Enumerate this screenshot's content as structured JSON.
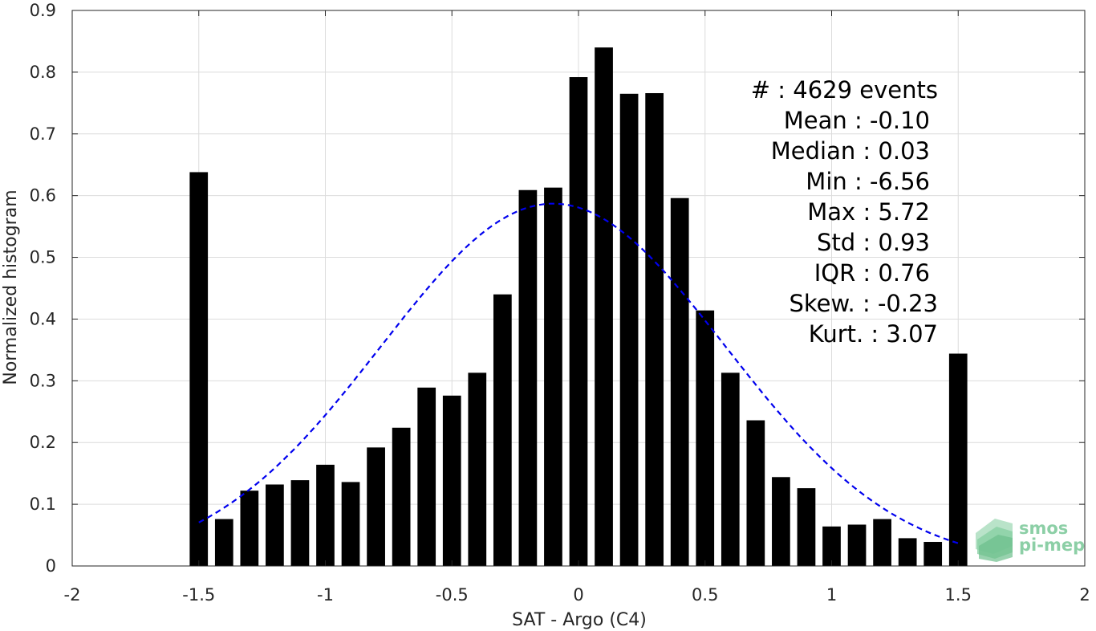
{
  "chart_data": {
    "type": "bar",
    "xlabel": "SAT - Argo (C4)",
    "ylabel": "Normalized histogram",
    "xlim": [
      -2,
      2
    ],
    "ylim": [
      0,
      0.9
    ],
    "x_ticks": [
      "-2",
      "-1.5",
      "-1",
      "-0.5",
      "0",
      "0.5",
      "1",
      "1.5",
      "2"
    ],
    "y_ticks": [
      "0",
      "0.1",
      "0.2",
      "0.3",
      "0.4",
      "0.5",
      "0.6",
      "0.7",
      "0.8",
      "0.9"
    ],
    "grid": true,
    "bar_color": "#000000",
    "bin_width": 0.1,
    "series": [
      {
        "x": [
          -1.5,
          -1.4,
          -1.3,
          -1.2,
          -1.1,
          -1.0,
          -0.9,
          -0.8,
          -0.7,
          -0.6,
          -0.5,
          -0.4,
          -0.3,
          -0.2,
          -0.1,
          0.0,
          0.1,
          0.2,
          0.3,
          0.4,
          0.5,
          0.6,
          0.7,
          0.8,
          0.9,
          1.0,
          1.1,
          1.2,
          1.3,
          1.4,
          1.5
        ],
        "values": [
          0.638,
          0.076,
          0.122,
          0.132,
          0.139,
          0.164,
          0.136,
          0.192,
          0.224,
          0.289,
          0.276,
          0.313,
          0.44,
          0.609,
          0.613,
          0.792,
          0.84,
          0.765,
          0.766,
          0.596,
          0.414,
          0.313,
          0.236,
          0.144,
          0.126,
          0.064,
          0.067,
          0.076,
          0.045,
          0.039,
          0.344
        ]
      }
    ],
    "fit_curve": {
      "type": "normal",
      "mean": -0.1,
      "std": 0.68,
      "peak": 0.587,
      "x_range": [
        -1.5,
        1.5
      ],
      "color": "#0000ee",
      "style": "dashed"
    },
    "annotations": [
      "#  : 4629 events",
      "Mean : -0.10",
      "Median : 0.03",
      "Min : -6.56",
      "Max : 5.72",
      "Std : 0.93",
      "IQR : 0.76",
      "Skew. : -0.23",
      "Kurt. : 3.07"
    ]
  },
  "logo": {
    "line1": "smos",
    "line2": "pi-mep",
    "color": "#6cbf8c"
  }
}
